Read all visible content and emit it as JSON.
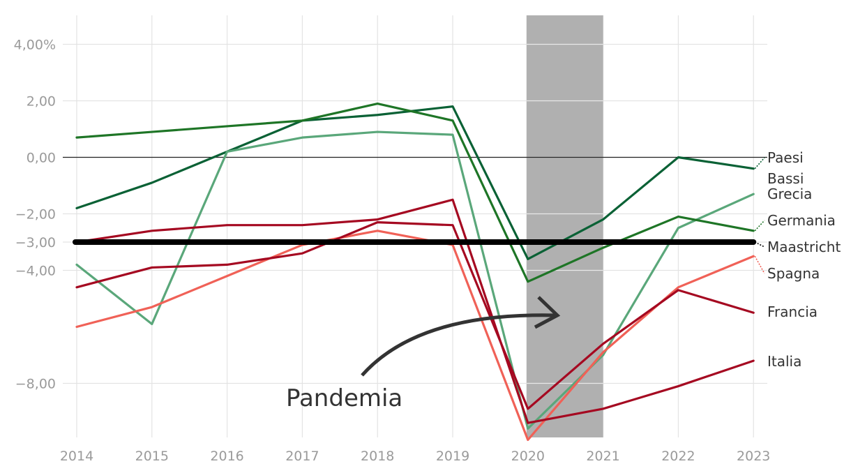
{
  "chart_data": {
    "type": "line",
    "x": [
      2014,
      2015,
      2016,
      2017,
      2018,
      2019,
      2020,
      2021,
      2022,
      2023
    ],
    "ylim": [
      -9.9,
      5.0
    ],
    "grid": true,
    "x_tick_labels": [
      "2014",
      "2015",
      "2016",
      "2017",
      "2018",
      "2019",
      "2020",
      "2021",
      "2022",
      "2023"
    ],
    "y_ticks": [
      {
        "value": 4,
        "label": "4,00%"
      },
      {
        "value": 2,
        "label": "2,00"
      },
      {
        "value": 0,
        "label": "0,00"
      },
      {
        "value": -2,
        "label": "−2,00"
      },
      {
        "value": -3,
        "label": "−3,00"
      },
      {
        "value": -4,
        "label": "−4,00"
      },
      {
        "value": -8,
        "label": "−8,00"
      }
    ],
    "zero_line": 0,
    "threshold": {
      "name": "Maastricht",
      "value": -3.0,
      "color": "#000000"
    },
    "shaded_region": {
      "x_from": 2020,
      "x_to": 2021,
      "color": "#b0b0b0"
    },
    "annotation": {
      "text": "Pandemia"
    },
    "series": [
      {
        "name": "Paesi Bassi",
        "color": "#0a6135",
        "values": [
          -1.8,
          -0.9,
          0.2,
          1.3,
          1.5,
          1.8,
          -3.6,
          -2.2,
          0.0,
          -0.4
        ]
      },
      {
        "name": "Grecia",
        "color": "#5aa77a",
        "values": [
          -3.8,
          -5.9,
          0.2,
          0.7,
          0.9,
          0.8,
          -9.6,
          -7.0,
          -2.5,
          -1.3
        ]
      },
      {
        "name": "Germania",
        "color": "#1e7526",
        "values": [
          0.7,
          0.9,
          1.1,
          1.3,
          1.9,
          1.3,
          -4.4,
          -3.2,
          -2.1,
          -2.6
        ]
      },
      {
        "name": "Spagna",
        "color": "#f06157",
        "values": [
          -6.0,
          -5.3,
          -4.2,
          -3.1,
          -2.6,
          -3.1,
          -10.0,
          -6.9,
          -4.6,
          -3.5
        ]
      },
      {
        "name": "Francia",
        "color": "#a50921",
        "values": [
          -4.6,
          -3.9,
          -3.8,
          -3.4,
          -2.3,
          -2.4,
          -8.9,
          -6.6,
          -4.7,
          -5.5
        ]
      },
      {
        "name": "Italia",
        "color": "#a50921",
        "values": [
          -3.0,
          -2.6,
          -2.4,
          -2.4,
          -2.2,
          -1.5,
          -9.4,
          -8.9,
          -8.1,
          -7.2
        ]
      }
    ],
    "labels": [
      {
        "text": "Paesi",
        "series": "Paesi Bassi"
      },
      {
        "text": "Bassi",
        "series": "Paesi Bassi"
      },
      {
        "text": "Grecia",
        "series": "Grecia"
      },
      {
        "text": "Germania",
        "series": "Germania"
      },
      {
        "text": "Maastricht",
        "series": "Maastricht"
      },
      {
        "text": "Spagna",
        "series": "Spagna"
      },
      {
        "text": "Francia",
        "series": "Francia"
      },
      {
        "text": "Italia",
        "series": "Italia"
      }
    ]
  }
}
